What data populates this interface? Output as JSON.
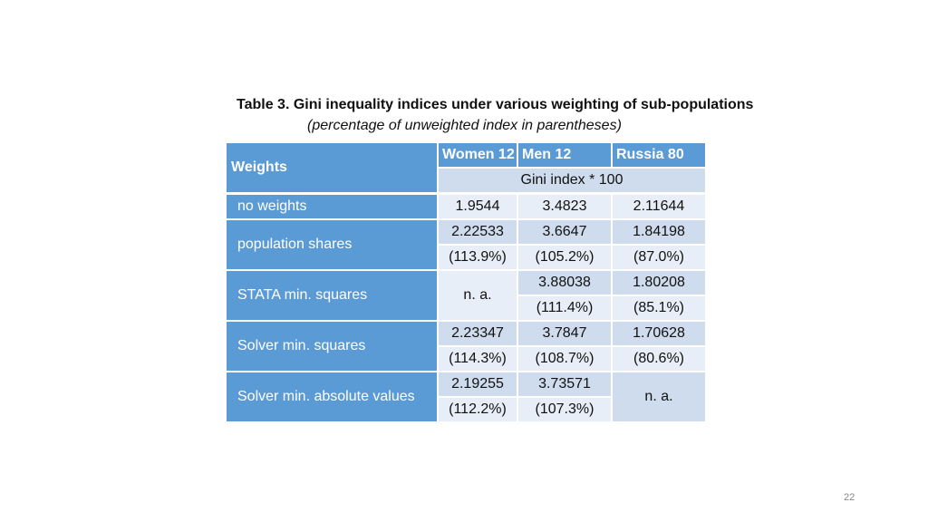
{
  "slide": {
    "title": "Table 3. Gini inequality indices under various weighting of sub-populations",
    "subtitle": "(percentage of unweighted index in parentheses)",
    "page_number": "22"
  },
  "table": {
    "row_header": "Weights",
    "columns": [
      "Women 12",
      "Men 12",
      "Russia 80"
    ],
    "subheader": "Gini index * 100",
    "rows": [
      {
        "label": "no weights",
        "women": "1.9544",
        "men": "3.4823",
        "russia": "2.11644"
      },
      {
        "label": "population shares",
        "women": "2.22533",
        "women_pct": "(113.9%)",
        "men": "3.6647",
        "men_pct": "(105.2%)",
        "russia": "1.84198",
        "russia_pct": "(87.0%)"
      },
      {
        "label": "STATA min. squares",
        "women": "n. a.",
        "men": "3.88038",
        "men_pct": "(111.4%)",
        "russia": "1.80208",
        "russia_pct": "(85.1%)"
      },
      {
        "label": "Solver min. squares",
        "women": "2.23347",
        "women_pct": "(114.3%)",
        "men": "3.7847",
        "men_pct": "(108.7%)",
        "russia": "1.70628",
        "russia_pct": "(80.6%)"
      },
      {
        "label": "Solver min. absolute values",
        "women": "2.19255",
        "women_pct": "(112.2%)",
        "men": "3.73571",
        "men_pct": "(107.3%)",
        "russia": "n. a."
      }
    ]
  }
}
